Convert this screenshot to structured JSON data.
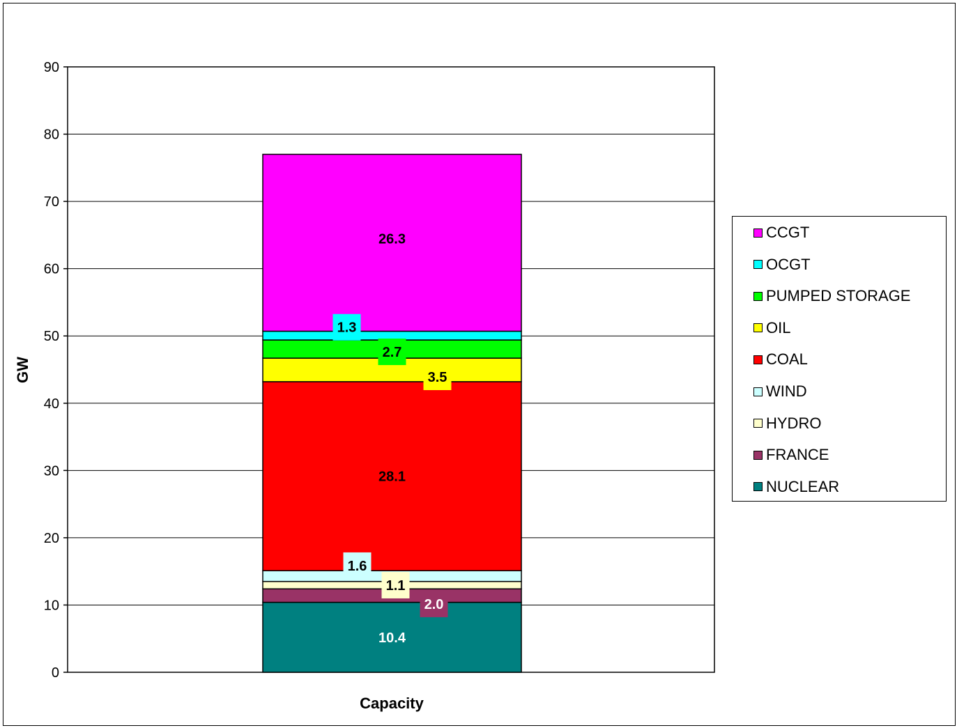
{
  "chart_data": {
    "type": "bar",
    "stacked": true,
    "categories": [
      "Capacity"
    ],
    "xlabel": "Capacity",
    "ylabel": "GW",
    "ylim": [
      0,
      90
    ],
    "yticks": [
      0,
      10,
      20,
      30,
      40,
      50,
      60,
      70,
      80,
      90
    ],
    "grid": true,
    "legend_position": "right",
    "series": [
      {
        "name": "NUCLEAR",
        "values": [
          10.4
        ],
        "label": "10.4",
        "color": "#008080",
        "label_color": "#ffffff",
        "label_bg": ""
      },
      {
        "name": "FRANCE",
        "values": [
          2.0
        ],
        "label": "2.0",
        "color": "#993366",
        "label_color": "#ffffff",
        "label_bg": "#993366"
      },
      {
        "name": "HYDRO",
        "values": [
          1.1
        ],
        "label": "1.1",
        "color": "#ffffcc",
        "label_color": "#000000",
        "label_bg": "#ffffcc"
      },
      {
        "name": "WIND",
        "values": [
          1.6
        ],
        "label": "1.6",
        "color": "#ccffff",
        "label_color": "#000000",
        "label_bg": "#ccffff"
      },
      {
        "name": "COAL",
        "values": [
          28.1
        ],
        "label": "28.1",
        "color": "#ff0000",
        "label_color": "#000000",
        "label_bg": ""
      },
      {
        "name": "OIL",
        "values": [
          3.5
        ],
        "label": "3.5",
        "color": "#ffff00",
        "label_color": "#000000",
        "label_bg": "#ffff00"
      },
      {
        "name": "PUMPED STORAGE",
        "values": [
          2.7
        ],
        "label": "2.7",
        "color": "#00ff00",
        "label_color": "#000000",
        "label_bg": "#00ff00"
      },
      {
        "name": "OCGT",
        "values": [
          1.3
        ],
        "label": "1.3",
        "color": "#00ffff",
        "label_color": "#000000",
        "label_bg": "#00ffff"
      },
      {
        "name": "CCGT",
        "values": [
          26.3
        ],
        "label": "26.3",
        "color": "#ff00ff",
        "label_color": "#000000",
        "label_bg": ""
      }
    ],
    "legend_order": [
      "CCGT",
      "OCGT",
      "PUMPED STORAGE",
      "OIL",
      "COAL",
      "WIND",
      "HYDRO",
      "FRANCE",
      "NUCLEAR"
    ]
  }
}
